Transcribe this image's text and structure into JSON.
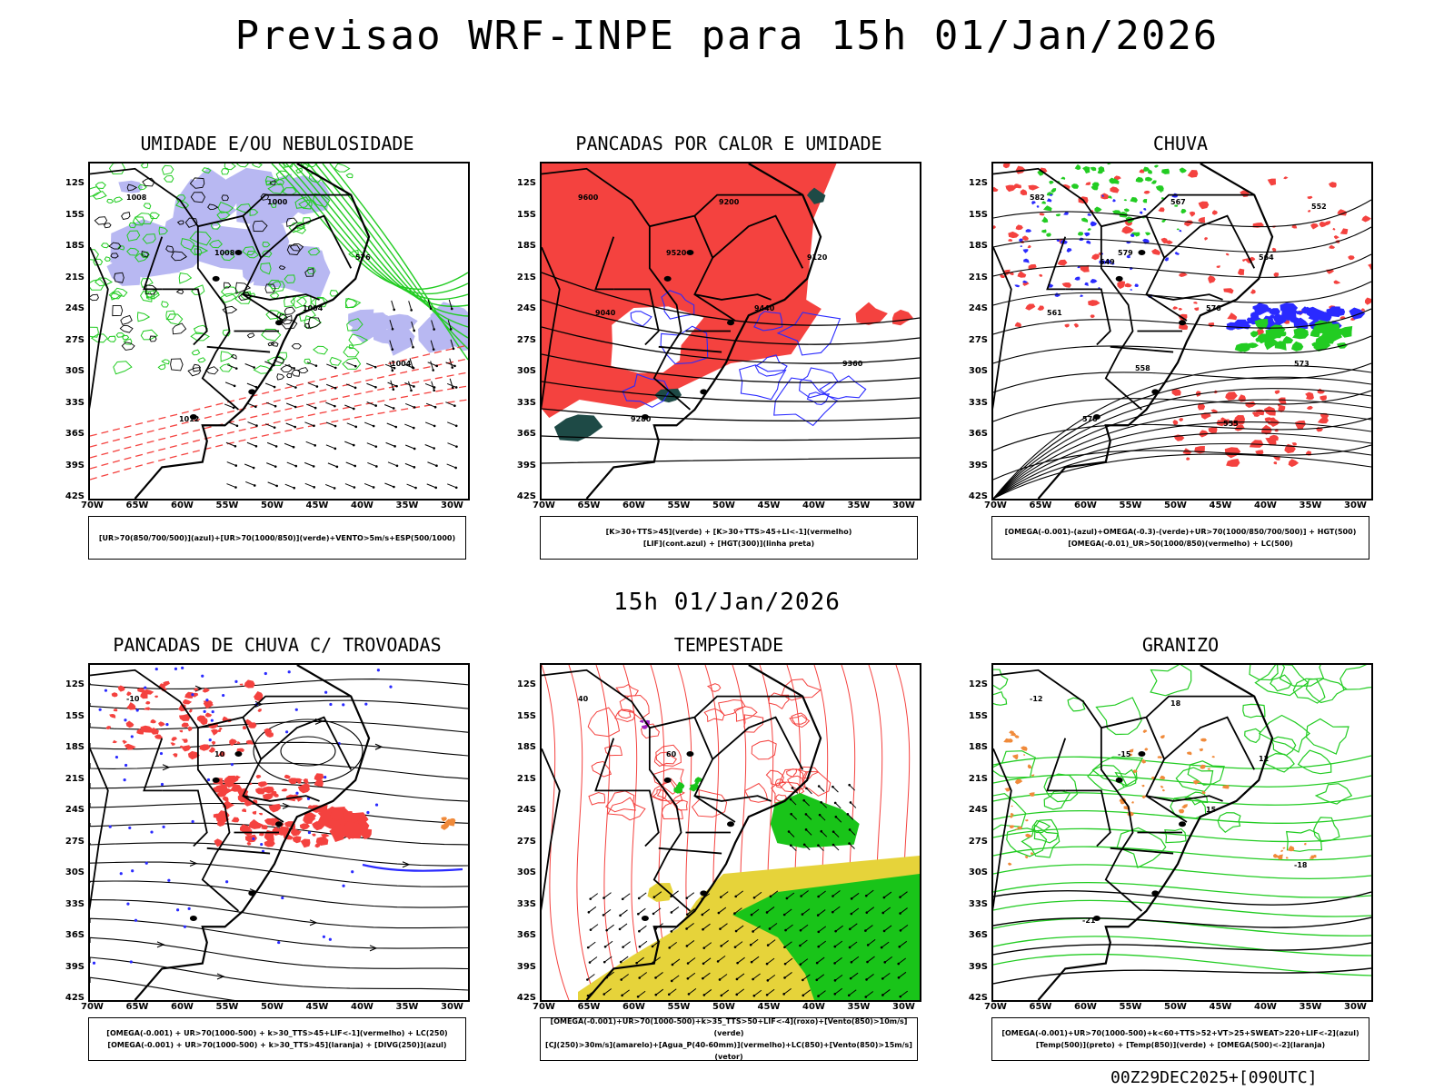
{
  "header": {
    "title": "Previsao WRF-INPE  para 15h 01/Jan/2026"
  },
  "middle": {
    "subtitle": "15h 01/Jan/2026"
  },
  "footer": {
    "run_info": "00Z29DEC2025+[090UTC]"
  },
  "axes": {
    "lat_labels": [
      "12S",
      "15S",
      "18S",
      "21S",
      "24S",
      "27S",
      "30S",
      "33S",
      "36S",
      "39S",
      "42S"
    ],
    "lon_labels": [
      "70W",
      "65W",
      "60W",
      "55W",
      "50W",
      "45W",
      "40W",
      "35W",
      "30W"
    ]
  },
  "colors": {
    "red": "#f4423f",
    "blue": "#2a2aff",
    "green": "#22cc22",
    "lavender": "#b8b8f2",
    "dark_teal": "#1e4a46",
    "yellow": "#e6d33a",
    "orange": "#f08a3a",
    "purple": "#a020c0"
  },
  "panels": [
    {
      "title": "UMIDADE E/OU NEBULOSIDADE",
      "legend": [
        "[UR>70(850/700/500)](azul)+[UR>70(1000/850)](verde)+VENTO>5m/s+ESP(500/1000)"
      ],
      "labels": [
        "1008",
        "1008",
        "1004",
        "1004",
        "1012",
        "1000",
        "576"
      ]
    },
    {
      "title": "PANCADAS POR CALOR E UMIDADE",
      "legend": [
        "[K>30+TTS>45](verde)  +  [K>30+TTS>45+LI<-1](vermelho)",
        "[LIF](cont.azul)  +  [HGT(300)](linha preta)"
      ],
      "labels": [
        "9600",
        "9520",
        "9440",
        "9360",
        "9280",
        "9200",
        "9120",
        "9040"
      ]
    },
    {
      "title": "CHUVA",
      "legend": [
        "[OMEGA(-0.001)-(azul)+OMEGA(-0.3)-(verde)+UR>70(1000/850/700/500)]  +  HGT(500)",
        "[OMEGA(-0.01)_UR>50(1000/850)(vermelho)  +  LC(500)"
      ],
      "labels": [
        "582",
        "579",
        "576",
        "573",
        "570",
        "567",
        "564",
        "561",
        "558",
        "555",
        "552",
        "549"
      ]
    },
    {
      "title": "PANCADAS DE CHUVA C/ TROVOADAS",
      "legend": [
        "[OMEGA(-0.001)  +  UR>70(1000-500)  +  k>30_TTS>45+LIF<-1](vermelho)  +  LC(250)",
        "[OMEGA(-0.001)  +  UR>70(1000-500)  +  k>30_TTS>45](laranja)  +  [DIVG(250)](azul)"
      ],
      "labels": [
        "-10",
        "10"
      ]
    },
    {
      "title": "TEMPESTADE",
      "legend": [
        "[OMEGA(-0.001)+UR>70(1000-500)+k>35_TTS>50+LIF<-4](roxo)+[Vento(850)>10m/s](verde)",
        "[CJ(250)>30m/s](amarelo)+[Agua_P(40-60mm)](vermelho)+LC(850)+[Vento(850)>15m/s](vetor)"
      ],
      "labels": [
        "40",
        "60"
      ]
    },
    {
      "title": "GRANIZO",
      "legend": [
        "[OMEGA(-0.001)+UR>70(1000-500)+k<60+TTS>52+VT>25+SWEAT>220+LIF<-2](azul)",
        "[Temp(500)](preto)  +  [Temp(850)](verde)  +  [OMEGA(500)<-2](laranja)"
      ],
      "labels": [
        "-12",
        "-15",
        "15",
        "-18",
        "-21",
        "18",
        "12"
      ]
    }
  ]
}
